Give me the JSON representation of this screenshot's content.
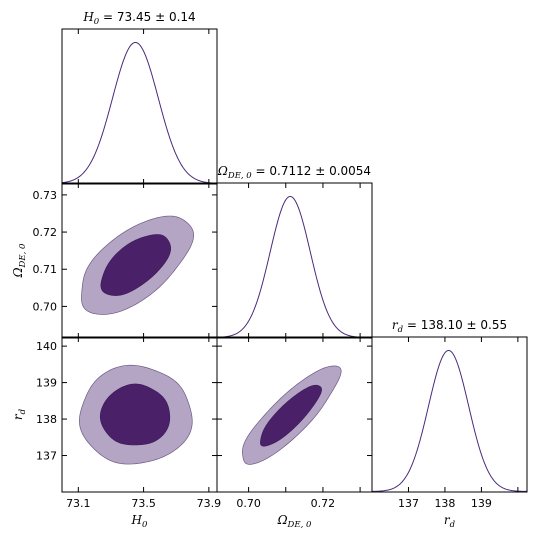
{
  "chart_data": {
    "type": "corner",
    "colors": {
      "line": "#4b2a7a",
      "inner_fill": "#4a2068",
      "outer_fill": "#b3a5c3",
      "axis": "#000000"
    },
    "parameters": [
      {
        "key": "H0",
        "label_main": "H",
        "label_sub": "0",
        "title": "H0 = 73.45 ± 0.14",
        "title_main": "H",
        "title_sub": "0",
        "title_rest": " = 73.45 ± 0.14",
        "mean": 73.45,
        "sigma": 0.14,
        "range": [
          73.0,
          73.95
        ],
        "ticks": [
          73.1,
          73.5,
          73.9
        ],
        "tick_labels": [
          "73.1",
          "73.5",
          "73.9"
        ]
      },
      {
        "key": "Omega_DE0",
        "label_main": "Ω",
        "label_sub": "DE, 0",
        "title": "ΩDE,0 = 0.7112 ± 0.0054",
        "title_main": "Ω",
        "title_sub": "DE, 0",
        "title_rest": " = 0.7112 ± 0.0054",
        "mean": 0.7112,
        "sigma": 0.0054,
        "range": [
          0.6915,
          0.7332
        ],
        "ticks": [
          0.7,
          0.71,
          0.72,
          0.73
        ],
        "tick_labels_x": [
          "0.70",
          "",
          "0.72",
          ""
        ],
        "tick_labels_y": [
          "0.70",
          "0.71",
          "0.72",
          "0.73"
        ]
      },
      {
        "key": "r_d",
        "label_main": "r",
        "label_sub": "d",
        "title": "rd = 138.10 ± 0.55",
        "title_main": "r",
        "title_sub": "d",
        "title_rest": " = 138.10 ± 0.55",
        "mean": 138.1,
        "sigma": 0.55,
        "range": [
          136.0,
          140.25
        ],
        "ticks": [
          137,
          138,
          139,
          140
        ],
        "tick_labels_x": [
          "137",
          "138",
          "139",
          ""
        ],
        "tick_labels_y": [
          "137",
          "138",
          "139",
          "140"
        ]
      }
    ],
    "pairs": [
      {
        "x": "H0",
        "y": "Omega_DE0",
        "rho": 0.6
      },
      {
        "x": "H0",
        "y": "r_d",
        "rho": 0.0
      },
      {
        "x": "Omega_DE0",
        "y": "r_d",
        "rho": 0.85
      }
    ],
    "contour_levels": [
      "68%",
      "95%"
    ]
  }
}
